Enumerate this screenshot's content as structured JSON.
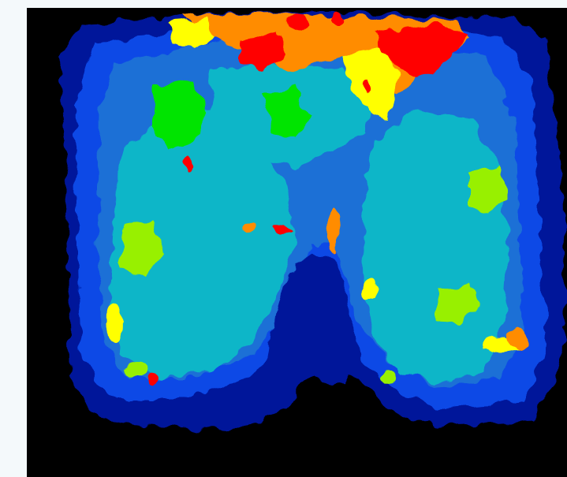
{
  "image": {
    "subject": "",
    "colors": {
      "page_background": "#f4f9fb",
      "frame_background": "#000000",
      "navy": "#00139a",
      "blue": "#0a48e6",
      "mid_blue": "#1b70d6",
      "cyan": "#0cb6c8",
      "green": "#00e400",
      "lime": "#98f000",
      "yellow": "#ffff00",
      "orange": "#ff8c00",
      "red": "#ff0000"
    }
  }
}
